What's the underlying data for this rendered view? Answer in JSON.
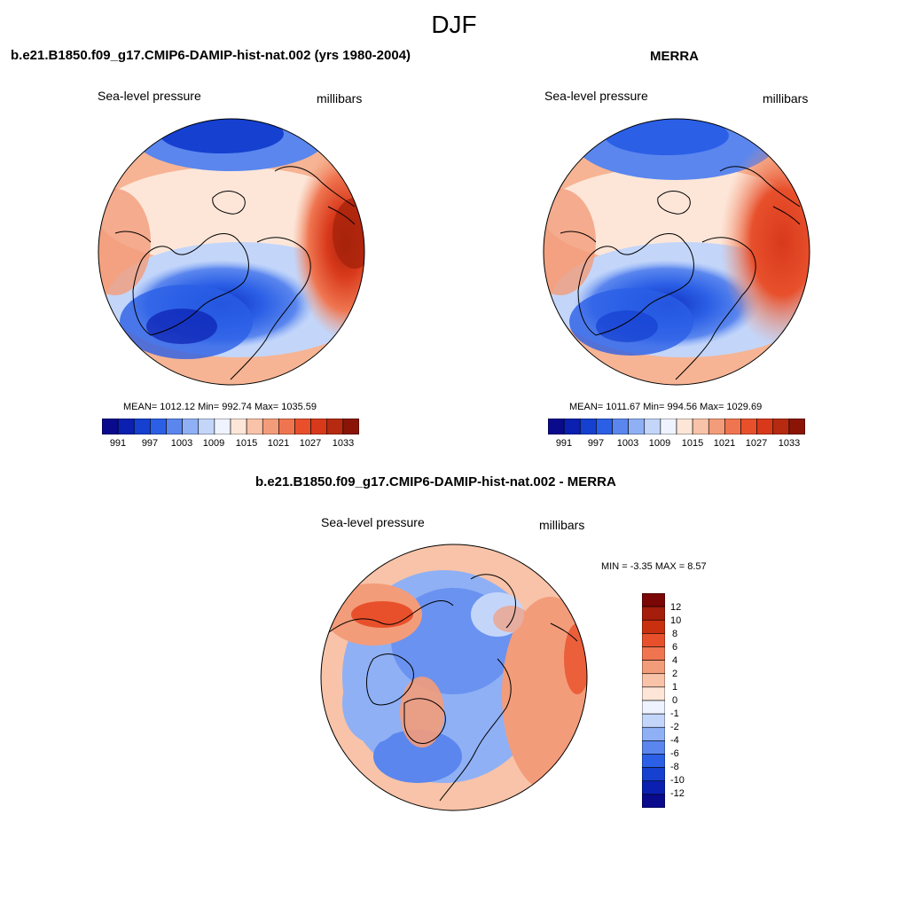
{
  "figure": {
    "title": "DJF"
  },
  "panels": {
    "model": {
      "title": "b.e21.B1850.f09_g17.CMIP6-DAMIP-hist-nat.002 (yrs 1980-2004)",
      "left_label": "Sea-level pressure",
      "right_label": "millibars",
      "stats": "MEAN= 1012.12  Min= 992.74  Max= 1035.59"
    },
    "obs": {
      "title": "MERRA",
      "left_label": "Sea-level pressure",
      "right_label": "millibars",
      "stats": "MEAN= 1011.67  Min= 994.56  Max= 1029.69"
    },
    "diff": {
      "title": "b.e21.B1850.f09_g17.CMIP6-DAMIP-hist-nat.002 - MERRA",
      "left_label": "Sea-level pressure",
      "right_label": "millibars",
      "stats": "MIN =  -3.35 MAX =   8.57"
    }
  },
  "colorbars": {
    "absolute": {
      "labels": [
        "991",
        "997",
        "1003",
        "1009",
        "1015",
        "1021",
        "1027",
        "1033"
      ],
      "colors": [
        "#0a0a8c",
        "#0b1fb0",
        "#1540d0",
        "#2b5fe6",
        "#5a86ee",
        "#8fb0f5",
        "#c3d6fa",
        "#eef3ff",
        "#fde6d8",
        "#f8c3a8",
        "#f39c7a",
        "#ef7550",
        "#e8502c",
        "#d8391b",
        "#b52a10",
        "#8a1506"
      ]
    },
    "difference": {
      "labels": [
        "12",
        "10",
        "8",
        "6",
        "4",
        "2",
        "1",
        "0",
        "-1",
        "-2",
        "-4",
        "-6",
        "-8",
        "-10",
        "-12"
      ],
      "colors": [
        "#7a0606",
        "#a51d0b",
        "#c9300f",
        "#e8502c",
        "#ef7550",
        "#f39c7a",
        "#f8c3a8",
        "#fde6d8",
        "#eef3ff",
        "#c3d6fa",
        "#8fb0f5",
        "#5a86ee",
        "#2b5fe6",
        "#1540d0",
        "#0b1fb0",
        "#0a0a8c"
      ]
    }
  }
}
